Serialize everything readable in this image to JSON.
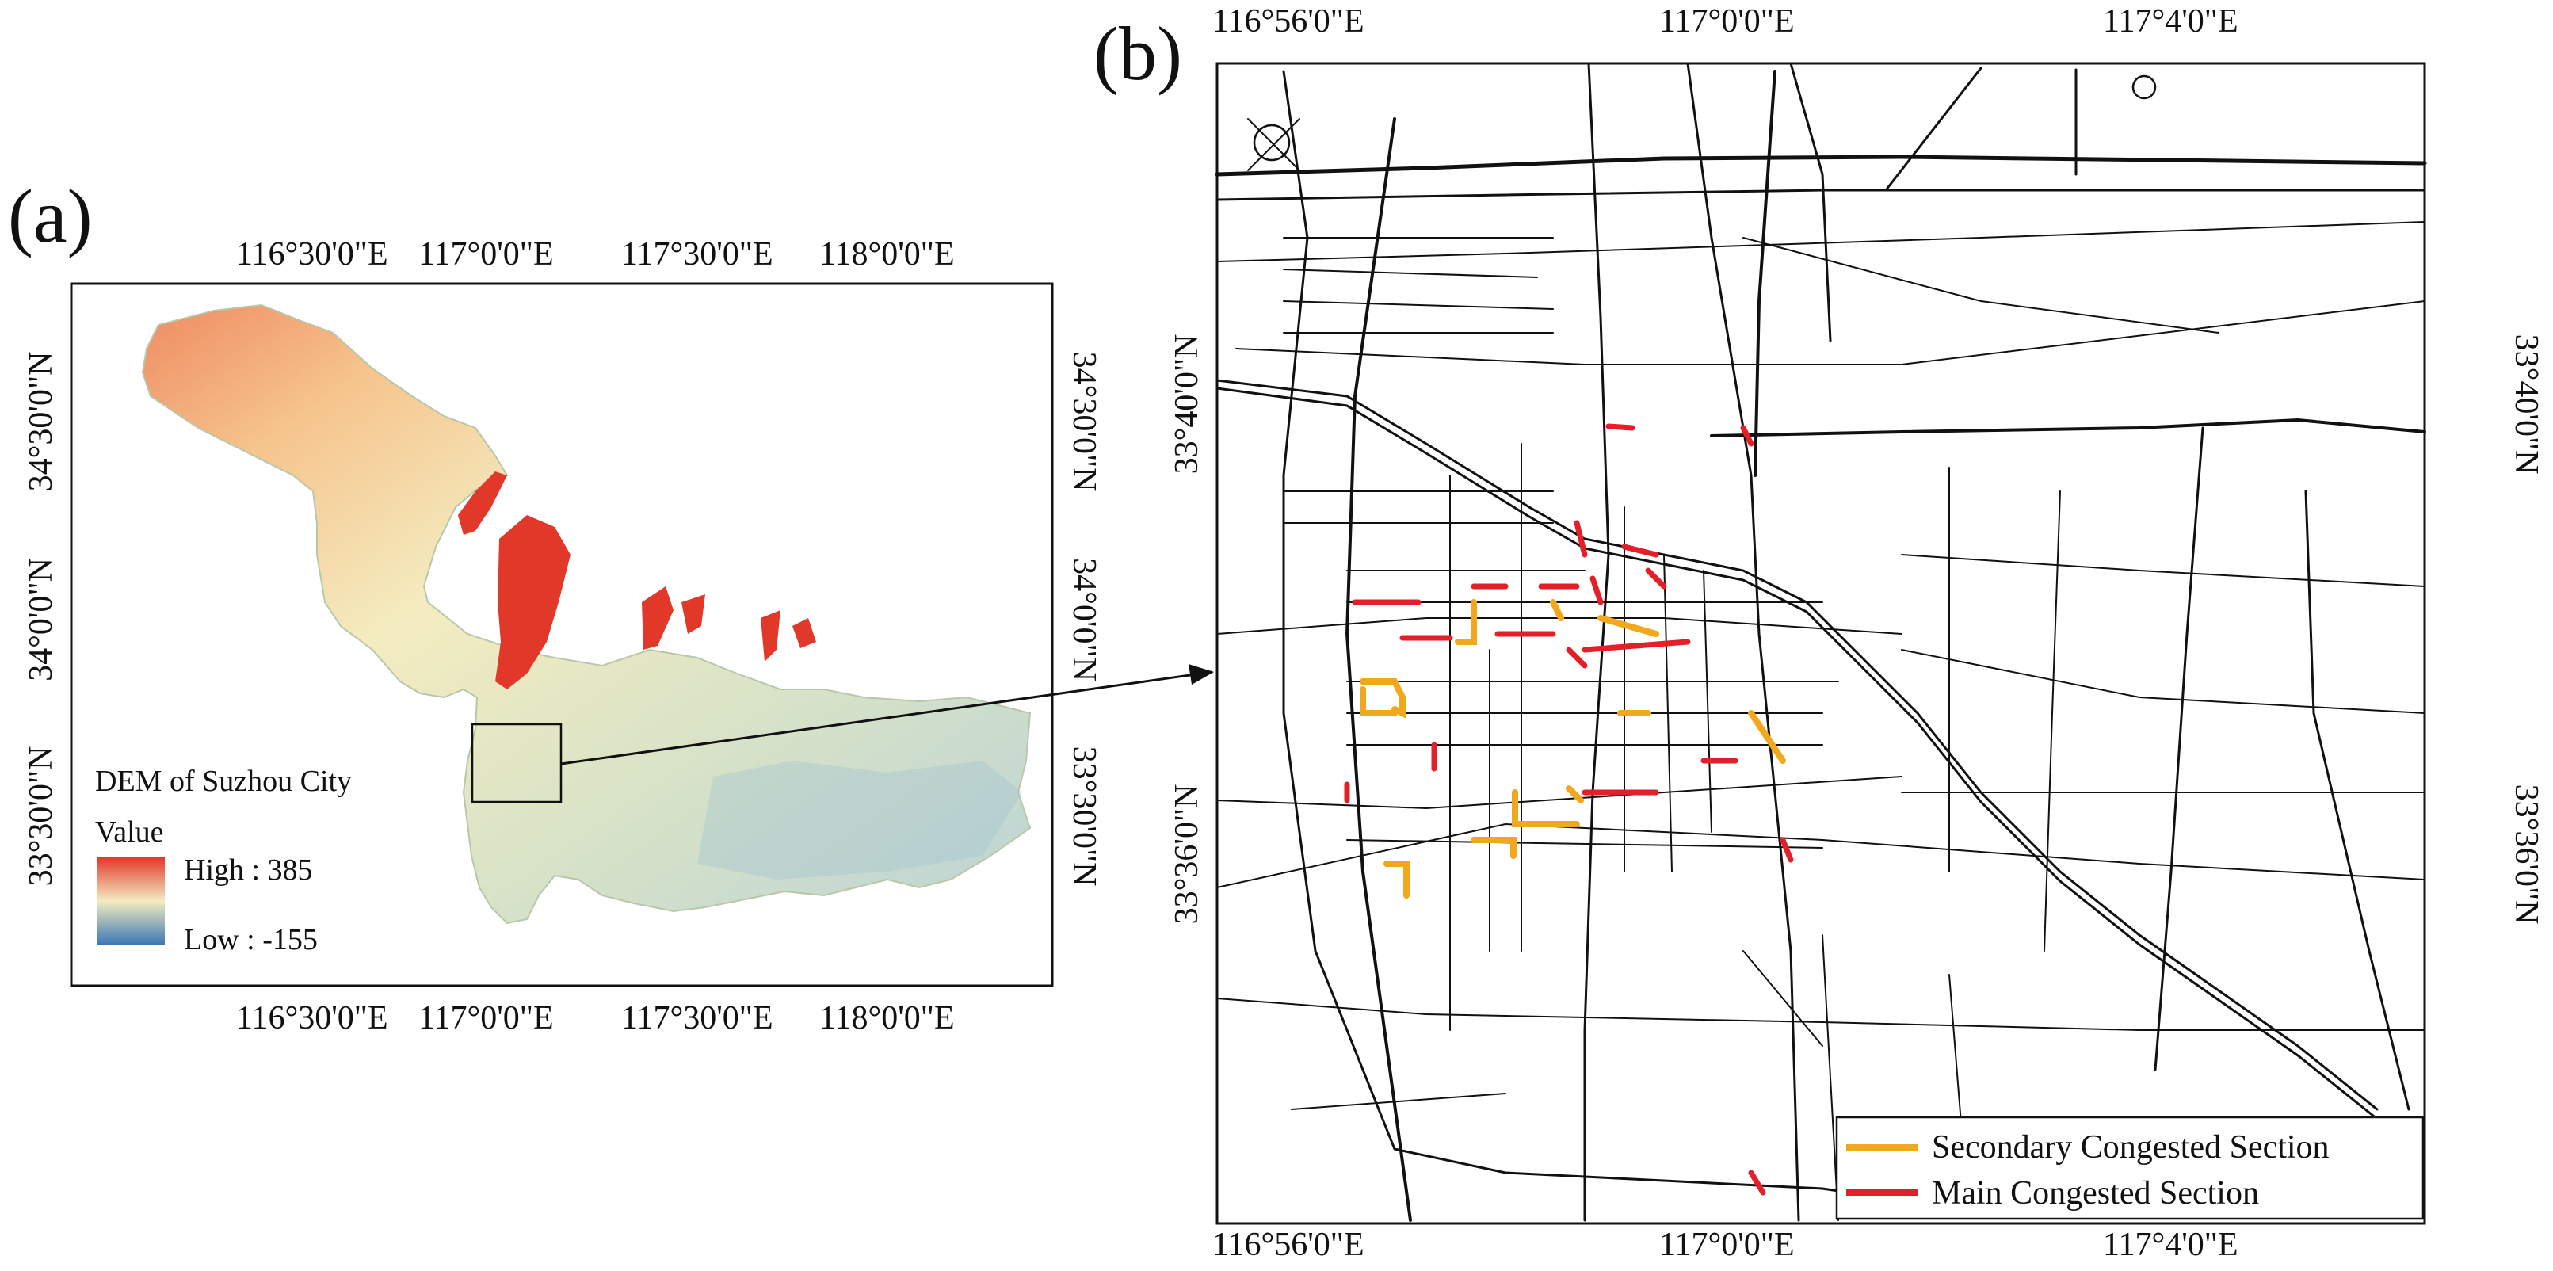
{
  "panel_a": {
    "label": "(a)",
    "top_ticks": [
      "116°30'0\"E",
      "117°0'0\"E",
      "117°30'0\"E",
      "118°0'0\"E"
    ],
    "bottom_ticks": [
      "116°30'0\"E",
      "117°0'0\"E",
      "117°30'0\"E",
      "118°0'0\"E"
    ],
    "left_ticks": [
      "34°30'0\"N",
      "34°0'0\"N",
      "33°30'0\"N"
    ],
    "right_ticks": [
      "34°30'0\"N",
      "34°0'0\"N",
      "33°30'0\"N"
    ],
    "legend": {
      "title": "DEM of Suzhou City",
      "subtitle": "Value",
      "high": "High : 385",
      "low": "Low : -155",
      "high_color": "#e2382a",
      "mid_color": "#f4ecc0",
      "low_color": "#3c78b4"
    }
  },
  "panel_b": {
    "label": "(b)",
    "top_ticks": [
      "116°56'0\"E",
      "117°0'0\"E",
      "117°4'0\"E"
    ],
    "bottom_ticks": [
      "116°56'0\"E",
      "117°0'0\"E",
      "117°4'0\"E"
    ],
    "left_ticks": [
      "33°40'0\"N",
      "33°36'0\"N"
    ],
    "right_ticks": [
      "33°40'0\"N",
      "33°36'0\"N"
    ],
    "legend": {
      "secondary": "Secondary Congested Section",
      "main": "Main Congested Section",
      "secondary_color": "#f2a81d",
      "main_color": "#e3202a"
    }
  },
  "colors": {
    "frame": "#111111",
    "road": "#111111"
  }
}
